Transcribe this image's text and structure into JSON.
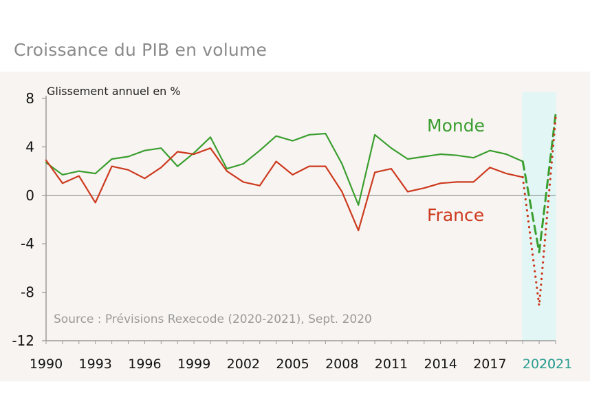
{
  "page": {
    "title": "Croissance du PIB en volume"
  },
  "chart_data": {
    "type": "line",
    "ylabel": "Glissement annuel en %",
    "source": "Source : Prévisions Rexecode (2020-2021), Sept. 2020",
    "ylim": [
      -12,
      8
    ],
    "yticks": [
      8,
      4,
      0,
      -4,
      -8,
      -12
    ],
    "xlim": [
      1990,
      2021
    ],
    "xticks": [
      1990,
      1993,
      1996,
      1999,
      2002,
      2005,
      2008,
      2011,
      2014,
      2017,
      2020,
      2021
    ],
    "projection_years": [
      2020,
      2021
    ],
    "grid": false,
    "colors": {
      "monde": "#3a9e2f",
      "france": "#cc3a1e",
      "projection_band": "#e3f6f6",
      "plot_bg": "#f8f4f1",
      "proj_tick": "#2a9d8f"
    },
    "series": [
      {
        "name": "Monde",
        "style": "solid",
        "x": [
          1990,
          1991,
          1992,
          1993,
          1994,
          1995,
          1996,
          1997,
          1998,
          1999,
          2000,
          2001,
          2002,
          2003,
          2004,
          2005,
          2006,
          2007,
          2008,
          2009,
          2010,
          2011,
          2012,
          2013,
          2014,
          2015,
          2016,
          2017,
          2018,
          2019
        ],
        "values": [
          2.7,
          1.7,
          2.0,
          1.8,
          3.0,
          3.2,
          3.7,
          3.9,
          2.4,
          3.5,
          4.8,
          2.2,
          2.6,
          3.7,
          4.9,
          4.5,
          5.0,
          5.1,
          2.6,
          -0.8,
          5.0,
          3.9,
          3.0,
          3.2,
          3.4,
          3.3,
          3.1,
          3.7,
          3.4,
          2.8
        ]
      },
      {
        "name": "France",
        "style": "solid",
        "x": [
          1990,
          1991,
          1992,
          1993,
          1994,
          1995,
          1996,
          1997,
          1998,
          1999,
          2000,
          2001,
          2002,
          2003,
          2004,
          2005,
          2006,
          2007,
          2008,
          2009,
          2010,
          2011,
          2012,
          2013,
          2014,
          2015,
          2016,
          2017,
          2018,
          2019
        ],
        "values": [
          2.9,
          1.0,
          1.6,
          -0.6,
          2.4,
          2.1,
          1.4,
          2.3,
          3.6,
          3.4,
          3.9,
          2.0,
          1.1,
          0.8,
          2.8,
          1.7,
          2.4,
          2.4,
          0.3,
          -2.9,
          1.9,
          2.2,
          0.3,
          0.6,
          1.0,
          1.1,
          1.1,
          2.3,
          1.8,
          1.5
        ]
      },
      {
        "name": "Monde (prévision)",
        "style": "dashed",
        "x": [
          2019,
          2020,
          2021
        ],
        "values": [
          2.8,
          -4.7,
          6.7
        ]
      },
      {
        "name": "France (prévision)",
        "style": "dotted",
        "x": [
          2019,
          2020,
          2021
        ],
        "values": [
          1.5,
          -9.1,
          6.4
        ]
      }
    ],
    "legend_labels": [
      {
        "text": "Monde",
        "series": "Monde"
      },
      {
        "text": "France",
        "series": "France"
      }
    ]
  }
}
